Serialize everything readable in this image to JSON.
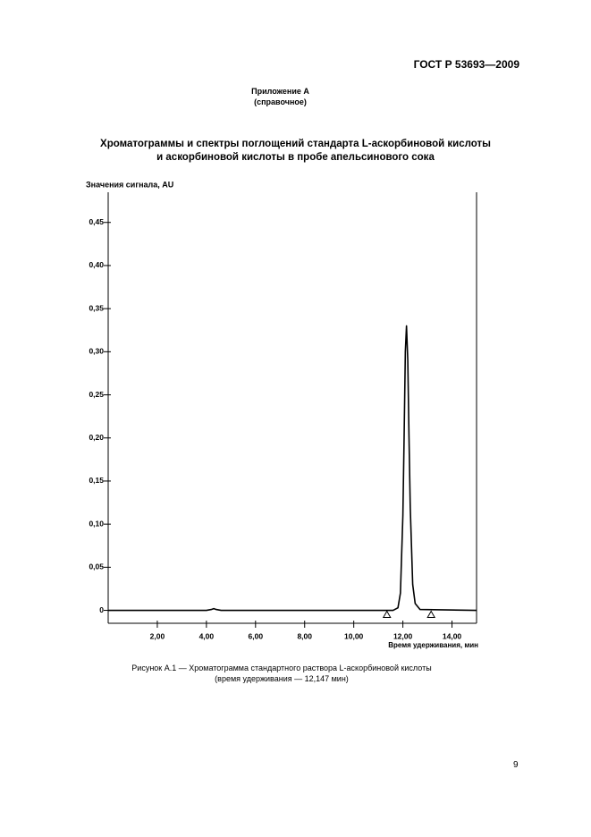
{
  "header": {
    "standard": "ГОСТ Р 53693—2009"
  },
  "appendix": {
    "title": "Приложение А",
    "note": "(справочное)"
  },
  "section_title": [
    "Хроматограммы и спектры поглощений стандарта L-аскорбиновой кислоты",
    "и аскорбиновой кислоты в пробе апельсинового сока"
  ],
  "chart_data": {
    "type": "line",
    "y_label": "Значения сигнала, AU",
    "x_label": "Время удерживания, мин",
    "x": [
      0,
      4.0,
      4.2,
      4.3,
      4.4,
      4.6,
      11.6,
      11.8,
      11.9,
      12.0,
      12.05,
      12.1,
      12.147,
      12.2,
      12.25,
      12.3,
      12.4,
      12.5,
      12.7,
      15
    ],
    "series": [
      {
        "color": "#000000",
        "values": [
          0,
          0,
          0.001,
          0.002,
          0.001,
          0,
          0,
          0.003,
          0.02,
          0.11,
          0.2,
          0.3,
          0.33,
          0.29,
          0.2,
          0.12,
          0.03,
          0.008,
          0.001,
          0
        ]
      }
    ],
    "markers": [
      11.35,
      13.15
    ],
    "xlim": [
      0,
      15
    ],
    "ylim": [
      -0.015,
      0.485
    ],
    "xticks": [
      {
        "value": 2,
        "label": "2,00"
      },
      {
        "value": 4,
        "label": "4,00"
      },
      {
        "value": 6,
        "label": "6,00"
      },
      {
        "value": 8,
        "label": "8,00"
      },
      {
        "value": 10,
        "label": "10,00"
      },
      {
        "value": 12,
        "label": "12,00"
      },
      {
        "value": 14,
        "label": "14,00"
      }
    ],
    "yticks": [
      0,
      {
        "value": 0.05,
        "label": "0,05"
      },
      {
        "value": 0.1,
        "label": "0,10"
      },
      {
        "value": 0.15,
        "label": "0,15"
      },
      {
        "value": 0.2,
        "label": "0,20"
      },
      {
        "value": 0.25,
        "label": "0,25"
      },
      {
        "value": 0.3,
        "label": "0,30"
      },
      {
        "value": 0.35,
        "label": "0,35"
      },
      {
        "value": 0.4,
        "label": "0,40"
      },
      {
        "value": 0.45,
        "label": "0,45"
      }
    ]
  },
  "caption": [
    "Рисунок А.1 — Хроматограмма стандартного раствора L-аскорбиновой кислоты",
    "(время удерживания — 12,147 мин)"
  ],
  "page_number": "9"
}
